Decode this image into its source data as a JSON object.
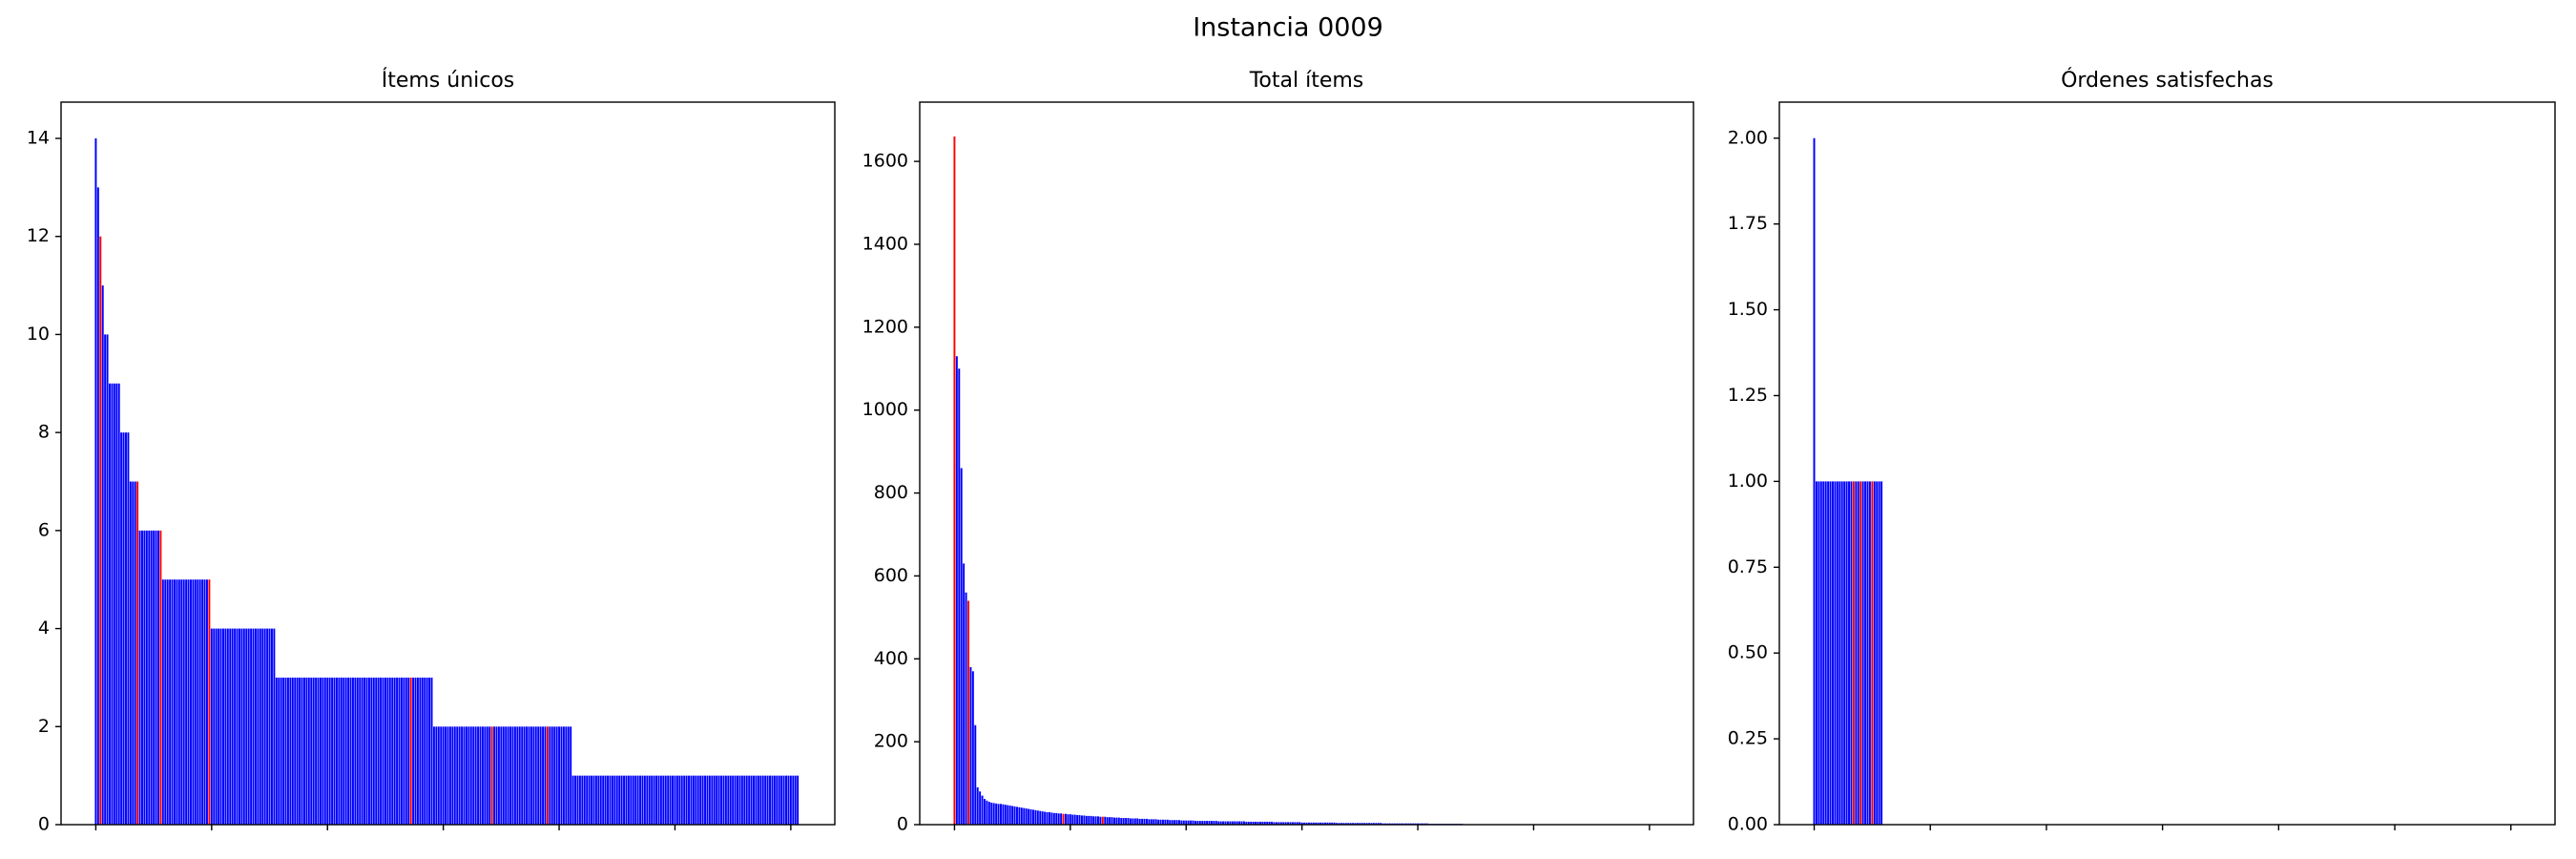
{
  "title": "Instancia 0009",
  "chart_data": [
    {
      "type": "bar",
      "title": "Ítems únicos",
      "values": [
        14,
        13,
        12,
        11,
        10,
        10,
        9,
        9,
        9,
        9,
        9,
        8,
        8,
        8,
        8,
        7,
        7,
        7,
        7,
        6,
        6,
        6,
        6,
        6,
        6,
        6,
        6,
        6,
        6,
        5,
        5,
        5,
        5,
        5,
        5,
        5,
        5,
        5,
        5,
        5,
        5,
        5,
        5,
        5,
        5,
        5,
        5,
        5,
        5,
        5,
        4,
        4,
        4,
        4,
        4,
        4,
        4,
        4,
        4,
        4,
        4,
        4,
        4,
        4,
        4,
        4,
        4,
        4,
        4,
        4,
        4,
        4,
        4,
        4,
        4,
        4,
        4,
        4,
        3,
        3,
        3,
        3,
        3,
        3,
        3,
        3,
        3,
        3,
        3,
        3,
        3,
        3,
        3,
        3,
        3,
        3,
        3,
        3,
        3,
        3,
        3,
        3,
        3,
        3,
        3,
        3,
        3,
        3,
        3,
        3,
        3,
        3,
        3,
        3,
        3,
        3,
        3,
        3,
        3,
        3,
        3,
        3,
        3,
        3,
        3,
        3,
        3,
        3,
        3,
        3,
        3,
        3,
        3,
        3,
        3,
        3,
        3,
        3,
        3,
        3,
        3,
        3,
        3,
        3,
        3,
        3,
        2,
        2,
        2,
        2,
        2,
        2,
        2,
        2,
        2,
        2,
        2,
        2,
        2,
        2,
        2,
        2,
        2,
        2,
        2,
        2,
        2,
        2,
        2,
        2,
        2,
        2,
        2,
        2,
        2,
        2,
        2,
        2,
        2,
        2,
        2,
        2,
        2,
        2,
        2,
        2,
        2,
        2,
        2,
        2,
        2,
        2,
        2,
        2,
        2,
        2,
        2,
        2,
        2,
        2,
        2,
        2,
        2,
        2,
        2,
        2,
        1,
        1,
        1,
        1,
        1,
        1,
        1,
        1,
        1,
        1,
        1,
        1,
        1,
        1,
        1,
        1,
        1,
        1,
        1,
        1,
        1,
        1,
        1,
        1,
        1,
        1,
        1,
        1,
        1,
        1,
        1,
        1,
        1,
        1,
        1,
        1,
        1,
        1,
        1,
        1,
        1,
        1,
        1,
        1,
        1,
        1,
        1,
        1,
        1,
        1,
        1,
        1,
        1,
        1,
        1,
        1,
        1,
        1,
        1,
        1,
        1,
        1,
        1,
        1,
        1,
        1,
        1,
        1,
        1,
        1,
        1,
        1,
        1,
        1,
        1,
        1,
        1,
        1,
        1,
        1,
        1,
        1,
        1,
        1,
        1,
        1,
        1,
        1,
        1,
        1,
        1,
        1,
        1,
        1,
        1,
        1,
        1,
        1
      ],
      "colors": [
        "blue",
        "blue",
        "red",
        "blue",
        "blue",
        "blue",
        "blue",
        "blue",
        "blue",
        "blue",
        "blue",
        "blue",
        "blue",
        "blue",
        "blue",
        "blue",
        "blue",
        "blue",
        "red",
        "blue",
        "blue",
        "blue",
        "blue",
        "blue",
        "blue",
        "blue",
        "blue",
        "blue",
        "red",
        "blue",
        "blue",
        "blue",
        "blue",
        "blue",
        "blue",
        "blue",
        "blue",
        "blue",
        "blue",
        "blue",
        "blue",
        "blue",
        "blue",
        "blue",
        "blue",
        "blue",
        "blue",
        "blue",
        "blue",
        "red",
        "blue",
        "blue",
        "blue",
        "blue",
        "blue",
        "blue",
        "blue",
        "blue",
        "blue",
        "blue",
        "blue",
        "blue",
        "blue",
        "blue",
        "blue",
        "blue",
        "blue",
        "blue",
        "blue",
        "blue",
        "blue",
        "blue",
        "blue",
        "blue",
        "blue",
        "blue",
        "blue",
        "blue",
        "blue",
        "blue",
        "blue",
        "blue",
        "blue",
        "blue",
        "blue",
        "blue",
        "blue",
        "blue",
        "blue",
        "blue",
        "blue",
        "blue",
        "blue",
        "blue",
        "blue",
        "blue",
        "blue",
        "blue",
        "blue",
        "blue",
        "blue",
        "blue",
        "blue",
        "blue",
        "blue",
        "blue",
        "blue",
        "blue",
        "blue",
        "blue",
        "blue",
        "blue",
        "blue",
        "blue",
        "blue",
        "blue",
        "blue",
        "blue",
        "blue",
        "blue",
        "blue",
        "blue",
        "blue",
        "blue",
        "blue",
        "blue",
        "blue",
        "blue",
        "blue",
        "blue",
        "blue",
        "blue",
        "blue",
        "blue",
        "blue",
        "blue",
        "red",
        "blue",
        "blue",
        "blue",
        "blue",
        "blue",
        "blue",
        "blue",
        "blue",
        "blue",
        "blue",
        "blue",
        "blue",
        "blue",
        "blue",
        "blue",
        "blue",
        "blue",
        "blue",
        "blue",
        "blue",
        "blue",
        "blue",
        "blue",
        "blue",
        "blue",
        "blue",
        "blue",
        "blue",
        "blue",
        "blue",
        "blue",
        "blue",
        "blue",
        "blue",
        "red",
        "blue",
        "blue",
        "blue",
        "blue",
        "blue",
        "blue",
        "blue",
        "blue",
        "blue",
        "blue",
        "blue",
        "blue",
        "blue",
        "blue",
        "blue",
        "blue",
        "blue",
        "blue",
        "blue",
        "blue",
        "blue",
        "blue",
        "blue",
        "red",
        "blue",
        "blue",
        "blue",
        "blue",
        "blue",
        "blue",
        "blue",
        "blue",
        "blue",
        "blue",
        "blue",
        "blue",
        "blue",
        "blue",
        "blue",
        "blue",
        "blue",
        "blue",
        "blue",
        "blue",
        "blue",
        "blue",
        "blue",
        "blue",
        "blue",
        "blue",
        "blue",
        "blue",
        "blue",
        "blue",
        "blue",
        "blue",
        "blue",
        "blue",
        "blue",
        "blue",
        "blue",
        "blue",
        "blue",
        "blue",
        "blue",
        "blue",
        "blue",
        "blue",
        "blue",
        "blue",
        "blue",
        "blue",
        "blue",
        "blue",
        "blue",
        "blue",
        "blue",
        "blue",
        "blue",
        "blue",
        "blue",
        "blue",
        "blue",
        "blue",
        "blue",
        "blue",
        "blue",
        "blue",
        "blue",
        "blue",
        "blue",
        "blue",
        "blue",
        "blue",
        "blue",
        "blue",
        "blue",
        "blue",
        "blue",
        "blue",
        "blue",
        "blue",
        "blue",
        "blue",
        "blue",
        "blue",
        "blue",
        "blue",
        "blue",
        "blue",
        "blue",
        "blue",
        "blue",
        "blue",
        "blue",
        "blue",
        "blue",
        "blue",
        "blue",
        "blue",
        "blue",
        "blue",
        "blue",
        "blue",
        "blue",
        "blue",
        "blue",
        "blue",
        "blue",
        "blue",
        "blue",
        "blue"
      ],
      "xlim": [
        -15,
        319
      ],
      "xticks": [
        0,
        50,
        100,
        150,
        200,
        250,
        300
      ],
      "ylim": [
        0,
        14.74
      ],
      "yticks": [
        0,
        2,
        4,
        6,
        8,
        10,
        12,
        14
      ]
    },
    {
      "type": "bar",
      "title": "Total ítems",
      "values": [
        1660,
        1130,
        1100,
        860,
        630,
        560,
        540,
        380,
        370,
        240,
        90,
        80,
        70,
        62,
        58,
        55,
        53,
        52,
        51,
        50,
        50,
        49,
        48,
        47,
        46,
        45,
        44,
        43,
        42,
        41,
        40,
        39,
        38,
        37,
        36,
        35,
        34,
        33,
        32,
        31,
        30,
        30,
        29,
        28,
        28,
        27,
        27,
        26,
        26,
        25,
        25,
        24,
        24,
        23,
        23,
        22,
        22,
        21,
        21,
        21,
        20,
        20,
        20,
        19,
        19,
        19,
        18,
        18,
        18,
        17,
        17,
        17,
        16,
        16,
        16,
        16,
        15,
        15,
        15,
        15,
        14,
        14,
        14,
        14,
        13,
        13,
        13,
        13,
        12,
        12,
        12,
        12,
        12,
        11,
        11,
        11,
        11,
        11,
        10,
        10,
        10,
        10,
        10,
        10,
        9,
        9,
        9,
        9,
        9,
        9,
        9,
        9,
        9,
        9,
        8,
        8,
        8,
        8,
        8,
        8,
        8,
        8,
        8,
        8,
        8,
        8,
        7,
        7,
        7,
        7,
        7,
        7,
        7,
        7,
        7,
        7,
        7,
        7,
        6,
        6,
        6,
        6,
        6,
        6,
        6,
        6,
        6,
        6,
        6,
        6,
        5,
        5,
        5,
        5,
        5,
        5,
        5,
        5,
        5,
        5,
        5,
        5,
        5,
        5,
        5,
        4,
        4,
        4,
        4,
        4,
        4,
        4,
        4,
        4,
        4,
        4,
        4,
        4,
        4,
        4,
        4,
        4,
        4,
        4,
        4,
        3,
        3,
        3,
        3,
        3,
        3,
        3,
        3,
        3,
        3,
        3,
        3,
        3,
        3,
        3,
        3,
        3,
        3,
        3,
        3,
        2,
        2,
        2,
        2,
        2,
        2,
        2,
        2,
        2,
        2,
        2,
        2,
        2,
        2,
        2
      ],
      "colors": [
        "red",
        "blue",
        "blue",
        "blue",
        "blue",
        "blue",
        "red",
        "blue",
        "blue",
        "blue",
        "blue",
        "blue",
        "blue",
        "blue",
        "blue",
        "blue",
        "blue",
        "blue",
        "blue",
        "blue",
        "blue",
        "blue",
        "blue",
        "blue",
        "blue",
        "blue",
        "blue",
        "blue",
        "blue",
        "blue",
        "blue",
        "blue",
        "blue",
        "blue",
        "blue",
        "blue",
        "blue",
        "blue",
        "blue",
        "blue",
        "blue",
        "blue",
        "blue",
        "blue",
        "blue",
        "blue",
        "blue",
        "red",
        "blue",
        "blue",
        "blue",
        "blue",
        "blue",
        "blue",
        "blue",
        "blue",
        "blue",
        "blue",
        "blue",
        "blue",
        "blue",
        "blue",
        "blue",
        "blue",
        "red",
        "blue",
        "blue",
        "blue",
        "blue",
        "blue",
        "blue",
        "blue",
        "blue",
        "blue",
        "blue",
        "blue",
        "blue",
        "blue",
        "blue",
        "blue",
        "blue",
        "blue",
        "blue",
        "blue",
        "blue",
        "blue",
        "blue",
        "blue",
        "blue",
        "blue",
        "blue",
        "blue",
        "blue",
        "blue",
        "blue",
        "blue",
        "blue",
        "blue",
        "blue",
        "blue",
        "blue",
        "blue",
        "blue",
        "blue",
        "blue",
        "blue",
        "blue",
        "blue",
        "blue",
        "blue",
        "blue",
        "blue",
        "blue",
        "blue",
        "blue",
        "blue",
        "blue",
        "blue",
        "blue",
        "blue",
        "blue",
        "blue",
        "blue",
        "blue",
        "blue",
        "blue",
        "blue",
        "blue",
        "blue",
        "blue",
        "blue",
        "blue",
        "blue",
        "blue",
        "blue",
        "blue",
        "blue",
        "blue",
        "blue",
        "blue",
        "blue",
        "blue",
        "blue",
        "blue",
        "blue",
        "blue",
        "blue",
        "blue",
        "blue",
        "blue",
        "blue",
        "blue",
        "blue",
        "blue",
        "blue",
        "blue",
        "blue",
        "blue",
        "blue",
        "blue",
        "blue",
        "blue",
        "blue",
        "blue",
        "blue",
        "blue",
        "blue",
        "blue",
        "blue",
        "blue",
        "blue",
        "blue",
        "blue",
        "blue",
        "blue",
        "blue",
        "blue",
        "blue",
        "blue",
        "blue",
        "blue",
        "blue",
        "blue",
        "blue",
        "blue",
        "blue",
        "blue",
        "blue",
        "blue",
        "blue",
        "blue",
        "blue",
        "blue",
        "blue",
        "blue",
        "blue",
        "blue",
        "blue",
        "blue",
        "blue",
        "blue",
        "blue",
        "blue",
        "blue",
        "blue",
        "blue",
        "blue",
        "blue",
        "blue",
        "blue",
        "blue",
        "blue",
        "blue",
        "blue",
        "blue",
        "blue",
        "blue",
        "blue",
        "blue",
        "blue"
      ],
      "xlim": [
        -15,
        319
      ],
      "xticks": [
        0,
        50,
        100,
        150,
        200,
        250,
        300
      ],
      "ylim": [
        0,
        1743
      ],
      "yticks": [
        0,
        200,
        400,
        600,
        800,
        1000,
        1200,
        1400,
        1600
      ]
    },
    {
      "type": "bar",
      "title": "Órdenes satisfechas",
      "values": [
        2,
        1,
        1,
        1,
        1,
        1,
        1,
        1,
        1,
        1,
        1,
        1,
        1,
        1,
        1,
        1,
        1,
        1,
        1,
        1,
        1,
        1,
        1,
        1,
        1,
        1,
        1,
        1,
        1,
        1
      ],
      "colors": [
        "blue",
        "blue",
        "blue",
        "blue",
        "blue",
        "blue",
        "blue",
        "blue",
        "blue",
        "blue",
        "blue",
        "blue",
        "blue",
        "blue",
        "blue",
        "blue",
        "blue",
        "red",
        "blue",
        "blue",
        "red",
        "blue",
        "blue",
        "blue",
        "blue",
        "red",
        "blue",
        "blue",
        "blue",
        "blue"
      ],
      "xlim": [
        -15,
        319
      ],
      "xticks": [
        0,
        50,
        100,
        150,
        200,
        250,
        300
      ],
      "ylim": [
        0,
        2.105
      ],
      "yticks": [
        {
          "value": 0,
          "label": "0.00"
        },
        {
          "value": 0.25,
          "label": "0.25"
        },
        {
          "value": 0.5,
          "label": "0.50"
        },
        {
          "value": 0.75,
          "label": "0.75"
        },
        {
          "value": 1,
          "label": "1.00"
        },
        {
          "value": 1.25,
          "label": "1.25"
        },
        {
          "value": 1.5,
          "label": "1.50"
        },
        {
          "value": 1.75,
          "label": "1.75"
        },
        {
          "value": 2,
          "label": "2.00"
        }
      ]
    }
  ]
}
